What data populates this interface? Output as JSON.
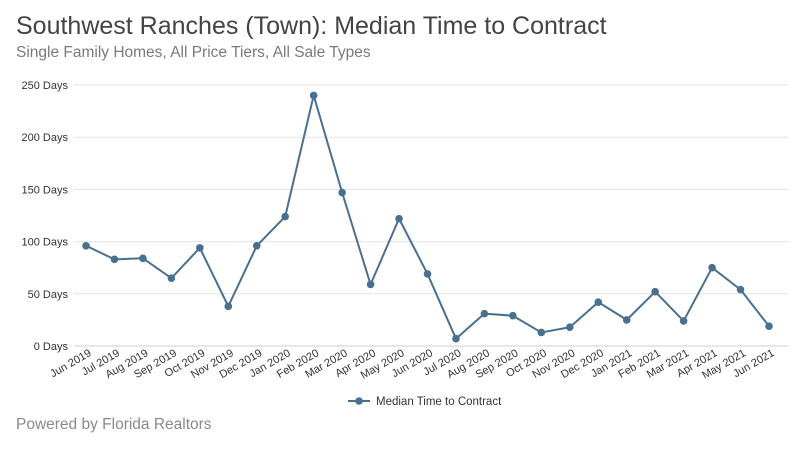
{
  "header": {
    "title": "Southwest Ranches (Town): Median Time to Contract",
    "subtitle": "Single Family Homes, All Price Tiers, All Sale Types"
  },
  "footer": {
    "text": "Powered by Florida Realtors"
  },
  "chart_data": {
    "type": "line",
    "title": "Southwest Ranches (Town): Median Time to Contract",
    "subtitle": "Single Family Homes, All Price Tiers, All Sale Types",
    "xlabel": "",
    "ylabel": "",
    "ylim": [
      0,
      250
    ],
    "yticks": [
      0,
      50,
      100,
      150,
      200,
      250
    ],
    "ytick_labels": [
      "0 Days",
      "50 Days",
      "100 Days",
      "150 Days",
      "200 Days",
      "250 Days"
    ],
    "grid": true,
    "legend_position": "bottom",
    "categories": [
      "Jun 2019",
      "Jul 2019",
      "Aug 2019",
      "Sep 2019",
      "Oct 2019",
      "Nov 2019",
      "Dec 2019",
      "Jan 2020",
      "Feb 2020",
      "Mar 2020",
      "Apr 2020",
      "May 2020",
      "Jun 2020",
      "Jul 2020",
      "Aug 2020",
      "Sep 2020",
      "Oct 2020",
      "Nov 2020",
      "Dec 2020",
      "Jan 2021",
      "Feb 2021",
      "Mar 2021",
      "Apr 2021",
      "May 2021",
      "Jun 2021"
    ],
    "series": [
      {
        "name": "Median Time to Contract",
        "color": "#4a7090",
        "values": [
          96,
          83,
          84,
          65,
          94,
          38,
          96,
          124,
          240,
          147,
          59,
          122,
          69,
          7,
          31,
          29,
          13,
          18,
          42,
          25,
          52,
          24,
          75,
          54,
          19
        ]
      }
    ]
  }
}
